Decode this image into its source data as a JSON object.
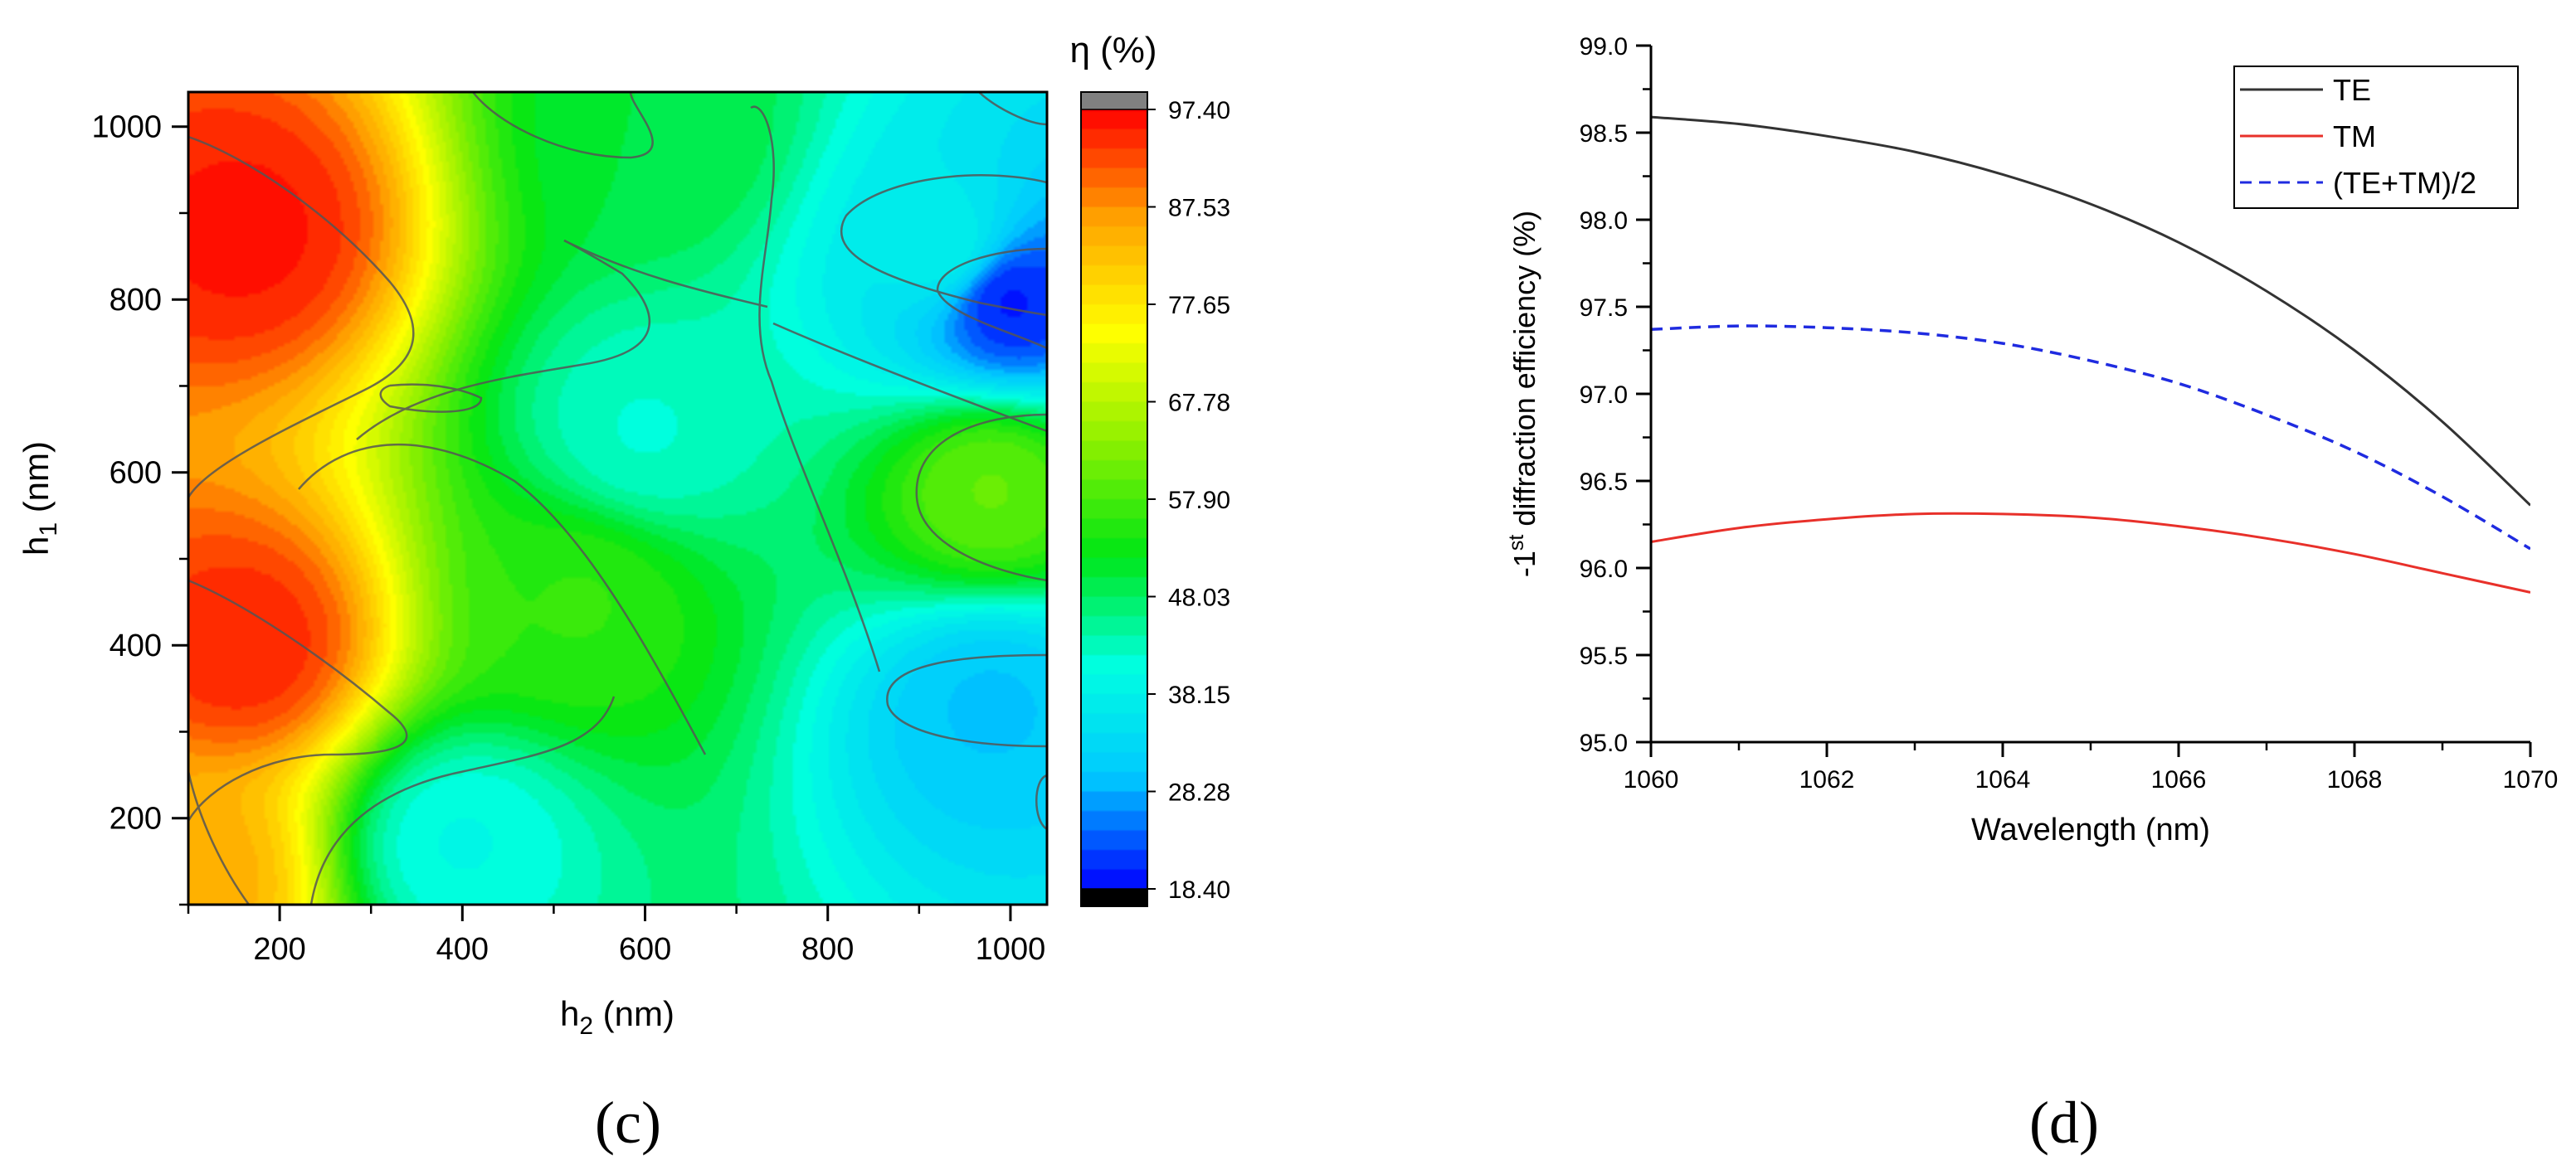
{
  "chart_data": [
    {
      "type": "heatmap",
      "panel_label": "(c)",
      "xlabel": {
        "main": "h",
        "sub": "2",
        "rest": " (nm)"
      },
      "ylabel": {
        "main": "h",
        "sub": "1",
        "rest": " (nm)"
      },
      "xlim": [
        100,
        1040
      ],
      "ylim": [
        100,
        1040
      ],
      "xticks": [
        200,
        400,
        600,
        800,
        1000
      ],
      "yticks": [
        200,
        400,
        600,
        800,
        1000
      ],
      "colorbar": {
        "title": "η (%)",
        "min": 18.4,
        "max": 97.4,
        "ticks": [
          "97.40",
          "87.53",
          "77.65",
          "67.78",
          "57.90",
          "48.03",
          "38.15",
          "28.28",
          "18.40"
        ],
        "over_color": "#808080",
        "under_color": "#000000",
        "stops": [
          "#0000ff",
          "#00c8ff",
          "#00ffe1",
          "#00e614",
          "#8cf000",
          "#ffff00",
          "#ffa500",
          "#ff0000"
        ]
      },
      "features": [
        {
          "h2": 160,
          "h1": 880,
          "eta": 96
        },
        {
          "h2": 160,
          "h1": 400,
          "eta": 95
        },
        {
          "h2": 100,
          "h1": 130,
          "eta": 85
        },
        {
          "h2": 1000,
          "h1": 800,
          "eta": 20
        },
        {
          "h2": 980,
          "h1": 330,
          "eta": 30
        },
        {
          "h2": 930,
          "h1": 860,
          "eta": 38
        },
        {
          "h2": 600,
          "h1": 650,
          "eta": 42
        },
        {
          "h2": 400,
          "h1": 170,
          "eta": 40
        },
        {
          "h2": 530,
          "h1": 450,
          "eta": 56
        },
        {
          "h2": 980,
          "h1": 580,
          "eta": 60
        },
        {
          "h2": 620,
          "h1": 990,
          "eta": 50
        }
      ]
    },
    {
      "type": "line",
      "panel_label": "(d)",
      "title": "",
      "xlabel": "Wavelength (nm)",
      "ylabel": {
        "pre": "-1",
        "sup": "st",
        "rest": " diffraction efficiency (%)"
      },
      "xlim": [
        1060,
        1070
      ],
      "ylim": [
        95.0,
        99.0
      ],
      "xticks": [
        1060,
        1062,
        1064,
        1066,
        1068,
        1070
      ],
      "yticks": [
        "95.0",
        "95.5",
        "96.0",
        "96.5",
        "97.0",
        "97.5",
        "98.0",
        "98.5",
        "99.0"
      ],
      "legend_position": "top-right",
      "x": [
        1060,
        1061,
        1062,
        1063,
        1064,
        1065,
        1066,
        1067,
        1068,
        1069,
        1070
      ],
      "series": [
        {
          "name": "TE",
          "color": "#333333",
          "style": "solid",
          "values": [
            98.59,
            98.55,
            98.48,
            98.39,
            98.26,
            98.09,
            97.87,
            97.59,
            97.25,
            96.84,
            96.36
          ]
        },
        {
          "name": "TM",
          "color": "#e8302a",
          "style": "solid",
          "values": [
            96.15,
            96.23,
            96.28,
            96.31,
            96.31,
            96.29,
            96.24,
            96.17,
            96.08,
            95.97,
            95.86
          ]
        },
        {
          "name": "(TE+TM)/2",
          "color": "#1f2be0",
          "style": "dashed",
          "values": [
            97.37,
            97.39,
            97.38,
            97.35,
            97.29,
            97.19,
            97.06,
            96.88,
            96.67,
            96.41,
            96.11
          ]
        }
      ]
    }
  ]
}
